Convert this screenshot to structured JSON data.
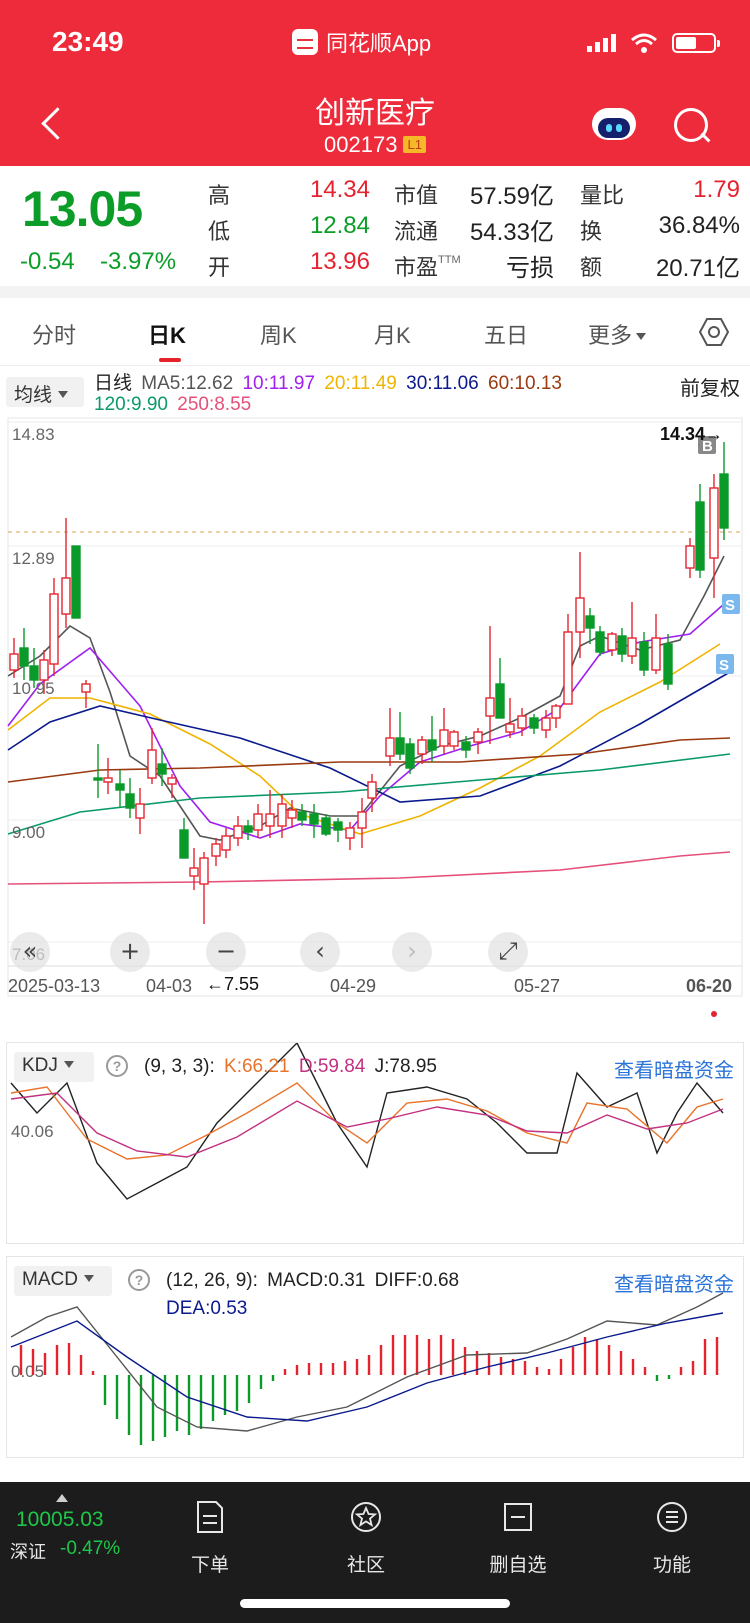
{
  "status": {
    "time": "23:49",
    "app": "同花顺App"
  },
  "header": {
    "title": "创新医疗",
    "code": "002173",
    "level": "L1"
  },
  "quote": {
    "price": "13.05",
    "change": "-0.54",
    "change_pct": "-3.97%",
    "high_label": "高",
    "high": "14.34",
    "low_label": "低",
    "low": "12.84",
    "open_label": "开",
    "open": "13.96",
    "mktcap_label": "市值",
    "mktcap": "57.59亿",
    "float_label": "流通",
    "float": "54.33亿",
    "pe_label": "市盈",
    "pe_sup": "TTM",
    "pe": "亏损",
    "vol_ratio_label": "量比",
    "vol_ratio": "1.79",
    "turnover_label": "换",
    "turnover": "36.84%",
    "amount_label": "额",
    "amount": "20.71亿"
  },
  "tabs": [
    {
      "label": "分时"
    },
    {
      "label": "日K"
    },
    {
      "label": "周K"
    },
    {
      "label": "月K"
    },
    {
      "label": "五日"
    },
    {
      "label": "更多"
    }
  ],
  "ma": {
    "select": "均线",
    "period": "日线",
    "ma5": "MA5:12.62",
    "ma10": "10:11.97",
    "ma20": "20:11.49",
    "ma30": "30:11.06",
    "ma60": "60:10.13",
    "ma120": "120:9.90",
    "ma250": "250:8.55",
    "adjust": "前复权",
    "colors": {
      "ma5": "#555555",
      "ma10": "#a020f0",
      "ma20": "#f0b400",
      "ma30": "#0a1a8c",
      "ma60": "#9a3a10",
      "ma120": "#0a9a6a",
      "ma250": "#e5507a"
    }
  },
  "kline": {
    "y_labels": [
      "14.83",
      "12.89",
      "10.95",
      "9.00",
      "7.06"
    ],
    "high_marker": "14.34→",
    "low_marker": "←7.55",
    "dates": [
      "2025-03-13",
      "04-03",
      "04-29",
      "05-27",
      "06-20"
    ],
    "buy_tag": "B",
    "sell_tag": "S",
    "controls": [
      "«",
      "+",
      "−",
      "‹",
      "›",
      "⤢"
    ]
  },
  "kdj": {
    "select": "KDJ",
    "params": "(9, 3, 3):",
    "k": "K:66.21",
    "d": "D:59.84",
    "j": "J:78.95",
    "y_label": "40.06",
    "link": "查看暗盘资金"
  },
  "macd": {
    "select": "MACD",
    "params": "(12, 26, 9):",
    "macd": "MACD:0.31",
    "diff": "DIFF:0.68",
    "dea": "DEA:0.53",
    "y_label": "0.05",
    "link": "查看暗盘资金"
  },
  "bottom": {
    "index_value": "10005.03",
    "index_name": "深证",
    "index_pct": "-0.47%",
    "nav": [
      {
        "label": "下单"
      },
      {
        "label": "社区"
      },
      {
        "label": "删自选"
      },
      {
        "label": "功能"
      }
    ]
  }
}
